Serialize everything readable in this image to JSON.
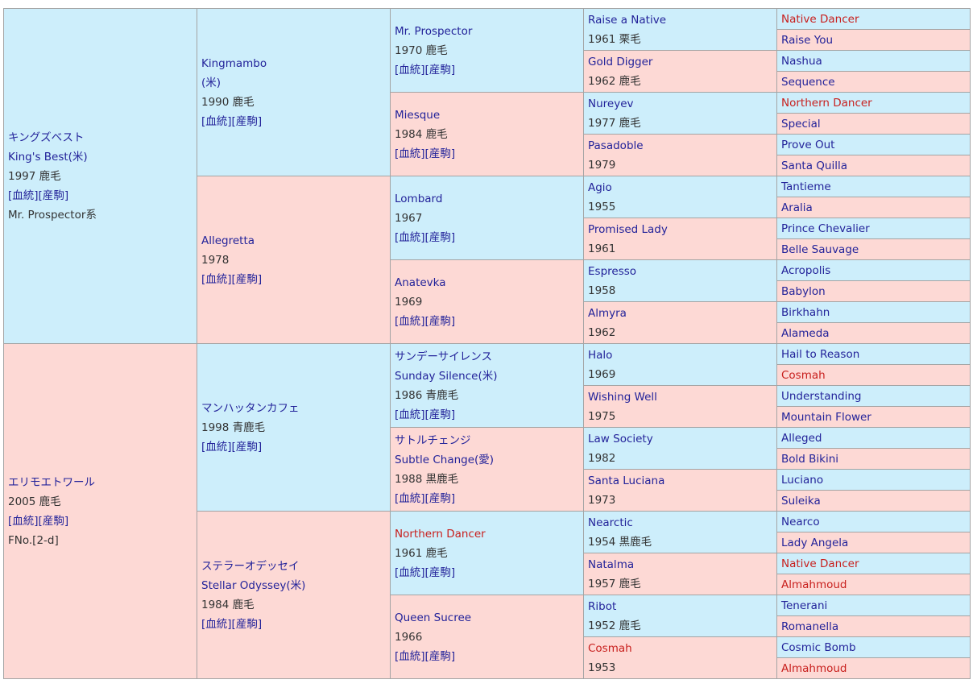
{
  "pedigree_links": [
    "[血統]",
    "[産駒]"
  ],
  "colors": {
    "sire_bg": "#cdeefb",
    "dam_bg": "#fdd9d5",
    "link": "#23239a",
    "red_link": "#c8201e"
  },
  "gen1": [
    {
      "name": [
        "キングズベスト",
        "King's Best(米)"
      ],
      "info": [
        "1997 鹿毛"
      ],
      "links": true,
      "extra": [
        "Mr. Prospector系"
      ]
    },
    {
      "name": [
        "エリモエトワール"
      ],
      "info": [
        "2005 鹿毛"
      ],
      "links": true,
      "extra": [
        "FNo.[2-d]"
      ]
    }
  ],
  "gen2": [
    {
      "name": [
        "Kingmambo",
        "(米)"
      ],
      "info": [
        "1990 鹿毛"
      ],
      "links": true
    },
    {
      "name": [
        "Allegretta"
      ],
      "info": [
        "1978"
      ],
      "links": true
    },
    {
      "name": [
        "マンハッタンカフェ"
      ],
      "info": [
        "1998 青鹿毛"
      ],
      "links": true
    },
    {
      "name": [
        "ステラーオデッセイ",
        "Stellar Odyssey(米)"
      ],
      "info": [
        "1984 鹿毛"
      ],
      "links": true
    }
  ],
  "gen3": [
    {
      "name": [
        "Mr. Prospector"
      ],
      "info": [
        "1970 鹿毛"
      ],
      "links": true
    },
    {
      "name": [
        "Miesque"
      ],
      "info": [
        "1984 鹿毛"
      ],
      "links": true
    },
    {
      "name": [
        "Lombard"
      ],
      "info": [
        "1967"
      ],
      "links": true
    },
    {
      "name": [
        "Anatevka"
      ],
      "info": [
        "1969"
      ],
      "links": true
    },
    {
      "name": [
        "サンデーサイレンス",
        "Sunday Silence(米)"
      ],
      "info": [
        "1986 青鹿毛"
      ],
      "links": true
    },
    {
      "name": [
        "サトルチェンジ",
        "Subtle Change(愛)"
      ],
      "info": [
        "1988 黒鹿毛"
      ],
      "links": true
    },
    {
      "name": [
        "Northern Dancer"
      ],
      "red": true,
      "info": [
        "1961 鹿毛"
      ],
      "links": true
    },
    {
      "name": [
        "Queen Sucree"
      ],
      "info": [
        "1966"
      ],
      "links": true
    }
  ],
  "gen4": [
    {
      "name": [
        "Raise a Native"
      ],
      "info": [
        "1961 栗毛"
      ]
    },
    {
      "name": [
        "Gold Digger"
      ],
      "info": [
        "1962 鹿毛"
      ]
    },
    {
      "name": [
        "Nureyev"
      ],
      "info": [
        "1977 鹿毛"
      ]
    },
    {
      "name": [
        "Pasadoble"
      ],
      "info": [
        "1979"
      ]
    },
    {
      "name": [
        "Agio"
      ],
      "info": [
        "1955"
      ]
    },
    {
      "name": [
        "Promised Lady"
      ],
      "info": [
        "1961"
      ]
    },
    {
      "name": [
        "Espresso"
      ],
      "info": [
        "1958"
      ]
    },
    {
      "name": [
        "Almyra"
      ],
      "info": [
        "1962"
      ]
    },
    {
      "name": [
        "Halo"
      ],
      "info": [
        "1969"
      ]
    },
    {
      "name": [
        "Wishing Well"
      ],
      "info": [
        "1975"
      ]
    },
    {
      "name": [
        "Law Society"
      ],
      "info": [
        "1982"
      ]
    },
    {
      "name": [
        "Santa Luciana"
      ],
      "info": [
        "1973"
      ]
    },
    {
      "name": [
        "Nearctic"
      ],
      "info": [
        "1954 黒鹿毛"
      ]
    },
    {
      "name": [
        "Natalma"
      ],
      "info": [
        "1957 鹿毛"
      ]
    },
    {
      "name": [
        "Ribot"
      ],
      "info": [
        "1952 鹿毛"
      ]
    },
    {
      "name": [
        "Cosmah"
      ],
      "red": true,
      "info": [
        "1953"
      ]
    }
  ],
  "gen5": [
    {
      "name": [
        "Native Dancer"
      ],
      "red": true
    },
    {
      "name": [
        "Raise You"
      ]
    },
    {
      "name": [
        "Nashua"
      ]
    },
    {
      "name": [
        "Sequence"
      ]
    },
    {
      "name": [
        "Northern Dancer"
      ],
      "red": true
    },
    {
      "name": [
        "Special"
      ]
    },
    {
      "name": [
        "Prove Out"
      ]
    },
    {
      "name": [
        "Santa Quilla"
      ]
    },
    {
      "name": [
        "Tantieme"
      ]
    },
    {
      "name": [
        "Aralia"
      ]
    },
    {
      "name": [
        "Prince Chevalier"
      ]
    },
    {
      "name": [
        "Belle Sauvage"
      ]
    },
    {
      "name": [
        "Acropolis"
      ]
    },
    {
      "name": [
        "Babylon"
      ]
    },
    {
      "name": [
        "Birkhahn"
      ]
    },
    {
      "name": [
        "Alameda"
      ]
    },
    {
      "name": [
        "Hail to Reason"
      ]
    },
    {
      "name": [
        "Cosmah"
      ],
      "red": true
    },
    {
      "name": [
        "Understanding"
      ]
    },
    {
      "name": [
        "Mountain Flower"
      ]
    },
    {
      "name": [
        "Alleged"
      ]
    },
    {
      "name": [
        "Bold Bikini"
      ]
    },
    {
      "name": [
        "Luciano"
      ]
    },
    {
      "name": [
        "Suleika"
      ]
    },
    {
      "name": [
        "Nearco"
      ]
    },
    {
      "name": [
        "Lady Angela"
      ]
    },
    {
      "name": [
        "Native Dancer"
      ],
      "red": true
    },
    {
      "name": [
        "Almahmoud"
      ],
      "red": true
    },
    {
      "name": [
        "Tenerani"
      ]
    },
    {
      "name": [
        "Romanella"
      ]
    },
    {
      "name": [
        "Cosmic Bomb"
      ]
    },
    {
      "name": [
        "Almahmoud"
      ],
      "red": true
    }
  ]
}
